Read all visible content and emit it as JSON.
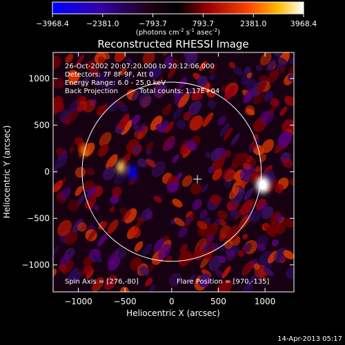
{
  "colorbar": {
    "ticks": [
      "−3968.4",
      "−2381.0",
      "−793.7",
      "793.7",
      "2381.0",
      "3968.4"
    ],
    "units_main": "(photons cm",
    "units_sup1": "-2",
    "units_mid1": " s",
    "units_sup2": "-1",
    "units_mid2": " asec",
    "units_sup3": "-2",
    "units_end": ")"
  },
  "title": "Reconstructed RHESSI Image",
  "info": {
    "line1": "26-Oct-2002 20:07:20.000 to 20:12:06.000",
    "line2": "Detectors: 7F 8F 9F, Att 0",
    "line3": "Energy Range: 6.0 - 25.0 keV",
    "line4a": "Back Projection",
    "line4b": "Total counts: 1.17E+04"
  },
  "footer_left": "Spin Axis = [276,-80]",
  "footer_right": "Flare Position = [970,-135]",
  "timestamp": "14-Apr-2013 05:17",
  "colors": {
    "background": "#000000",
    "frame": "#ffffff",
    "low": "#0000ff",
    "mid": "#000000",
    "high": "#ffffff"
  },
  "chart_data": {
    "type": "heatmap",
    "title": "Reconstructed RHESSI Image",
    "xlabel": "Heliocentric X (arcsec)",
    "ylabel": "Heliocentric Y (arcsec)",
    "xlim": [
      -1270,
      1310
    ],
    "ylim": [
      -1290,
      1280
    ],
    "xticks": [
      -1000,
      -500,
      0,
      500,
      1000
    ],
    "yticks": [
      -1000,
      -500,
      0,
      500,
      1000
    ],
    "xtick_labels": [
      "−1000",
      "−500",
      "0",
      "500",
      "1000"
    ],
    "ytick_labels": [
      "1000",
      "500",
      "0",
      "−500",
      "−1000"
    ],
    "zlim": [
      -3968.4,
      3968.4
    ],
    "solar_limb": {
      "center": [
        0,
        0
      ],
      "radius": 960
    },
    "spin_axis": [
      276,
      -80
    ],
    "flare_position": [
      970,
      -135
    ],
    "peak": {
      "x": 970,
      "y": -135
    },
    "min": {
      "x": -430,
      "y": 0
    }
  }
}
